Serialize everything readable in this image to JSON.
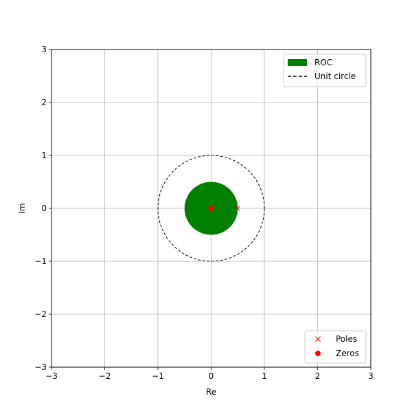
{
  "chart_data": {
    "type": "scatter",
    "title": "",
    "xlabel": "Re",
    "ylabel": "Im",
    "xlim": [
      -3,
      3
    ],
    "ylim": [
      -3,
      3
    ],
    "xticks": [
      -3,
      -2,
      -1,
      0,
      1,
      2,
      3
    ],
    "yticks": [
      -3,
      -2,
      -1,
      0,
      1,
      2,
      3
    ],
    "xtick_labels": [
      "−3",
      "−2",
      "−1",
      "0",
      "1",
      "2",
      "3"
    ],
    "ytick_labels": [
      "−3",
      "−2",
      "−1",
      "0",
      "1",
      "2",
      "3"
    ],
    "grid": true,
    "roc": {
      "name": "ROC",
      "type": "disk",
      "center": [
        0,
        0
      ],
      "radius": 0.5,
      "color": "#008000"
    },
    "unit_circle": {
      "name": "Unit circle",
      "center": [
        0,
        0
      ],
      "radius": 1,
      "style": "dashed",
      "color": "#000000"
    },
    "poles": {
      "name": "Poles",
      "marker": "x",
      "color": "#ff0000",
      "points": [
        [
          0.5,
          0
        ]
      ]
    },
    "zeros": {
      "name": "Zeros",
      "marker": "o",
      "color": "#ff0000",
      "points": [
        [
          0,
          0
        ]
      ]
    },
    "legends": [
      {
        "placement": "top-right",
        "entries": [
          "ROC",
          "Unit circle"
        ]
      },
      {
        "placement": "bottom-right",
        "entries": [
          "Poles",
          "Zeros"
        ]
      }
    ]
  }
}
